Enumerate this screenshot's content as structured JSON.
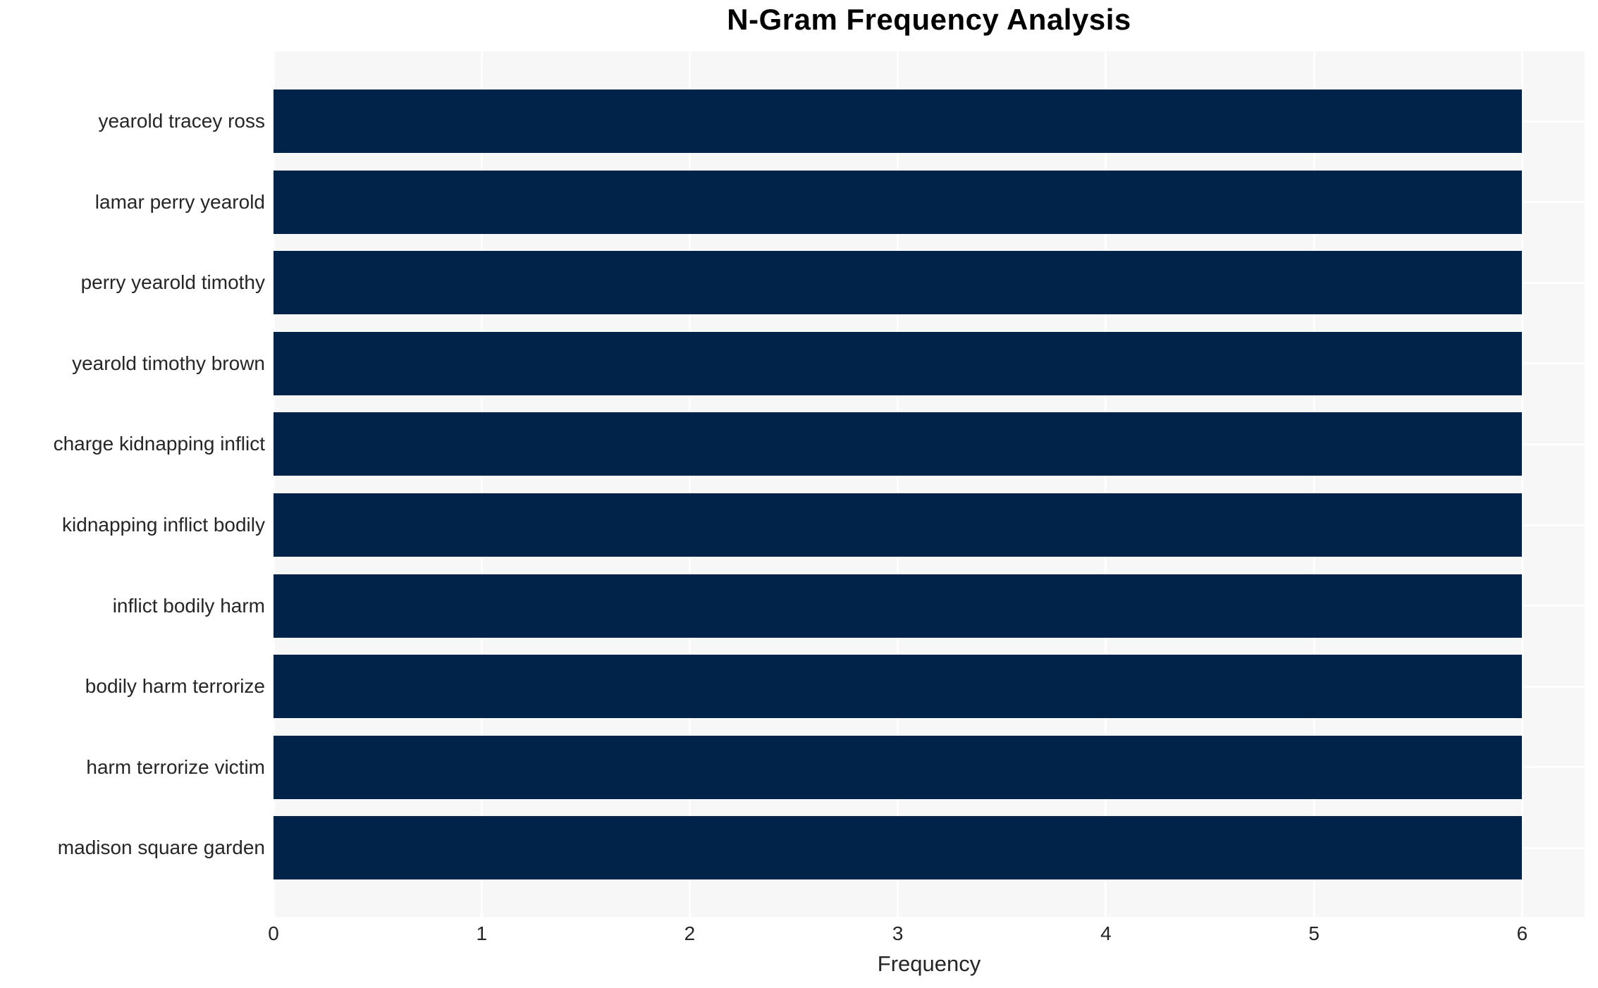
{
  "chart_data": {
    "type": "bar",
    "orientation": "horizontal",
    "title": "N-Gram Frequency Analysis",
    "xlabel": "Frequency",
    "ylabel": "",
    "categories": [
      "yearold tracey ross",
      "lamar perry yearold",
      "perry yearold timothy",
      "yearold timothy brown",
      "charge kidnapping inflict",
      "kidnapping inflict bodily",
      "inflict bodily harm",
      "bodily harm terrorize",
      "harm terrorize victim",
      "madison square garden"
    ],
    "values": [
      6,
      6,
      6,
      6,
      6,
      6,
      6,
      6,
      6,
      6
    ],
    "xticks": [
      0,
      1,
      2,
      3,
      4,
      5,
      6
    ],
    "xlim": [
      0,
      6.3
    ],
    "grid": true,
    "legend_position": "none",
    "colors": {
      "bar": "#022349",
      "plot_background": "#f7f7f7",
      "gridline": "#ffffff",
      "tick_label": "#262626",
      "title": "#000000"
    }
  }
}
